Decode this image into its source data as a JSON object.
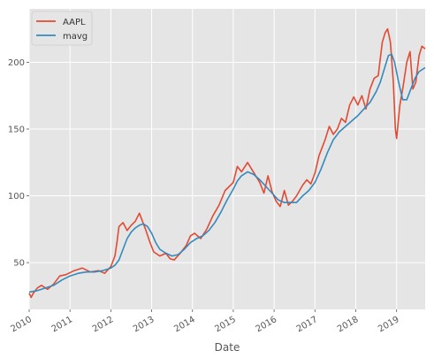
{
  "chart_data": {
    "type": "line",
    "title": "",
    "xlabel": "Date",
    "ylabel": "",
    "x_ticks": [
      "2010",
      "2011",
      "2012",
      "2013",
      "2014",
      "2015",
      "2016",
      "2017",
      "2018",
      "2019"
    ],
    "y_ticks": [
      50,
      100,
      150,
      200
    ],
    "xlim": [
      2010.0,
      2019.7
    ],
    "ylim": [
      15,
      240
    ],
    "grid": true,
    "legend_position": "top-left",
    "series": [
      {
        "name": "AAPL",
        "color": "#e24a33",
        "points": [
          [
            2010.0,
            27
          ],
          [
            2010.05,
            24
          ],
          [
            2010.1,
            27
          ],
          [
            2010.2,
            31
          ],
          [
            2010.3,
            33
          ],
          [
            2010.45,
            30
          ],
          [
            2010.6,
            34
          ],
          [
            2010.75,
            40
          ],
          [
            2010.9,
            41
          ],
          [
            2011.1,
            44
          ],
          [
            2011.3,
            46
          ],
          [
            2011.5,
            43
          ],
          [
            2011.7,
            44
          ],
          [
            2011.85,
            42
          ],
          [
            2012.0,
            47
          ],
          [
            2012.1,
            55
          ],
          [
            2012.15,
            65
          ],
          [
            2012.2,
            77
          ],
          [
            2012.3,
            80
          ],
          [
            2012.4,
            74
          ],
          [
            2012.5,
            78
          ],
          [
            2012.6,
            81
          ],
          [
            2012.7,
            87
          ],
          [
            2012.75,
            83
          ],
          [
            2012.85,
            75
          ],
          [
            2012.95,
            66
          ],
          [
            2013.05,
            58
          ],
          [
            2013.2,
            55
          ],
          [
            2013.35,
            57
          ],
          [
            2013.45,
            53
          ],
          [
            2013.55,
            52
          ],
          [
            2013.7,
            57
          ],
          [
            2013.85,
            63
          ],
          [
            2013.95,
            70
          ],
          [
            2014.05,
            72
          ],
          [
            2014.2,
            68
          ],
          [
            2014.35,
            75
          ],
          [
            2014.5,
            85
          ],
          [
            2014.65,
            93
          ],
          [
            2014.8,
            104
          ],
          [
            2014.9,
            107
          ],
          [
            2015.0,
            110
          ],
          [
            2015.1,
            122
          ],
          [
            2015.2,
            118
          ],
          [
            2015.35,
            125
          ],
          [
            2015.45,
            120
          ],
          [
            2015.55,
            115
          ],
          [
            2015.65,
            110
          ],
          [
            2015.75,
            102
          ],
          [
            2015.85,
            115
          ],
          [
            2015.95,
            103
          ],
          [
            2016.05,
            96
          ],
          [
            2016.15,
            92
          ],
          [
            2016.25,
            104
          ],
          [
            2016.35,
            93
          ],
          [
            2016.45,
            96
          ],
          [
            2016.55,
            100
          ],
          [
            2016.7,
            108
          ],
          [
            2016.8,
            112
          ],
          [
            2016.9,
            109
          ],
          [
            2017.0,
            117
          ],
          [
            2017.1,
            130
          ],
          [
            2017.25,
            142
          ],
          [
            2017.35,
            152
          ],
          [
            2017.45,
            146
          ],
          [
            2017.55,
            150
          ],
          [
            2017.65,
            158
          ],
          [
            2017.75,
            155
          ],
          [
            2017.85,
            168
          ],
          [
            2017.95,
            174
          ],
          [
            2018.05,
            168
          ],
          [
            2018.15,
            175
          ],
          [
            2018.25,
            165
          ],
          [
            2018.35,
            180
          ],
          [
            2018.45,
            188
          ],
          [
            2018.55,
            190
          ],
          [
            2018.65,
            215
          ],
          [
            2018.72,
            222
          ],
          [
            2018.78,
            225
          ],
          [
            2018.85,
            215
          ],
          [
            2018.92,
            185
          ],
          [
            2018.97,
            150
          ],
          [
            2019.0,
            143
          ],
          [
            2019.08,
            168
          ],
          [
            2019.15,
            180
          ],
          [
            2019.25,
            200
          ],
          [
            2019.33,
            208
          ],
          [
            2019.4,
            180
          ],
          [
            2019.47,
            185
          ],
          [
            2019.55,
            205
          ],
          [
            2019.62,
            212
          ],
          [
            2019.7,
            210
          ]
        ]
      },
      {
        "name": "mavg",
        "color": "#348abd",
        "points": [
          [
            2010.0,
            28
          ],
          [
            2010.2,
            29
          ],
          [
            2010.4,
            31
          ],
          [
            2010.6,
            33
          ],
          [
            2010.8,
            37
          ],
          [
            2011.0,
            40
          ],
          [
            2011.2,
            42
          ],
          [
            2011.4,
            43
          ],
          [
            2011.6,
            43
          ],
          [
            2011.8,
            44
          ],
          [
            2012.0,
            46
          ],
          [
            2012.1,
            48
          ],
          [
            2012.2,
            52
          ],
          [
            2012.3,
            60
          ],
          [
            2012.4,
            68
          ],
          [
            2012.5,
            73
          ],
          [
            2012.6,
            76
          ],
          [
            2012.7,
            78
          ],
          [
            2012.8,
            79
          ],
          [
            2012.9,
            77
          ],
          [
            2013.0,
            72
          ],
          [
            2013.1,
            65
          ],
          [
            2013.2,
            60
          ],
          [
            2013.35,
            57
          ],
          [
            2013.5,
            55
          ],
          [
            2013.65,
            56
          ],
          [
            2013.8,
            60
          ],
          [
            2013.95,
            65
          ],
          [
            2014.1,
            68
          ],
          [
            2014.25,
            70
          ],
          [
            2014.4,
            74
          ],
          [
            2014.55,
            80
          ],
          [
            2014.7,
            88
          ],
          [
            2014.85,
            97
          ],
          [
            2015.0,
            105
          ],
          [
            2015.1,
            111
          ],
          [
            2015.2,
            115
          ],
          [
            2015.35,
            118
          ],
          [
            2015.5,
            116
          ],
          [
            2015.65,
            112
          ],
          [
            2015.8,
            107
          ],
          [
            2015.95,
            102
          ],
          [
            2016.1,
            97
          ],
          [
            2016.25,
            95
          ],
          [
            2016.4,
            95
          ],
          [
            2016.55,
            95
          ],
          [
            2016.7,
            100
          ],
          [
            2016.85,
            104
          ],
          [
            2017.0,
            110
          ],
          [
            2017.15,
            120
          ],
          [
            2017.3,
            132
          ],
          [
            2017.45,
            142
          ],
          [
            2017.6,
            148
          ],
          [
            2017.75,
            152
          ],
          [
            2017.9,
            156
          ],
          [
            2018.05,
            160
          ],
          [
            2018.2,
            165
          ],
          [
            2018.35,
            170
          ],
          [
            2018.5,
            178
          ],
          [
            2018.6,
            185
          ],
          [
            2018.7,
            195
          ],
          [
            2018.8,
            205
          ],
          [
            2018.88,
            206
          ],
          [
            2018.95,
            200
          ],
          [
            2019.05,
            185
          ],
          [
            2019.15,
            172
          ],
          [
            2019.25,
            172
          ],
          [
            2019.35,
            180
          ],
          [
            2019.45,
            188
          ],
          [
            2019.55,
            193
          ],
          [
            2019.65,
            195
          ],
          [
            2019.7,
            196
          ]
        ]
      }
    ]
  }
}
